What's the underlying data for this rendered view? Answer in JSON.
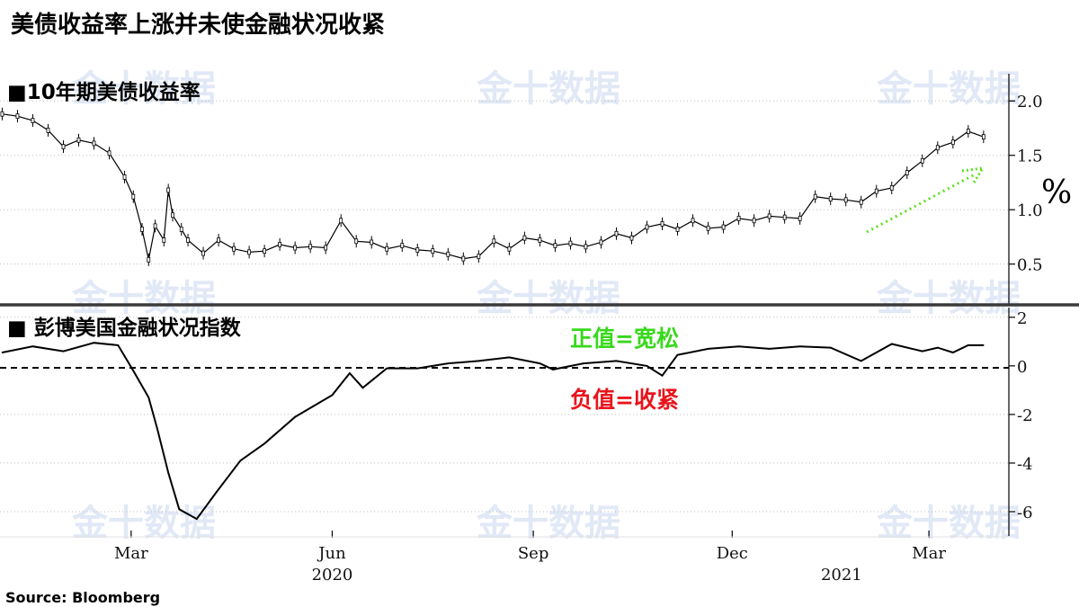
{
  "title": "美债收益率上涨并未使金融状况收紧",
  "source": "Source:  Bloomberg",
  "watermark": "金十数据",
  "chart_data": [
    {
      "type": "line",
      "title": "■10年期美债收益率",
      "ylabel": "%",
      "ylim": [
        0.15,
        2.25
      ],
      "yticks": [
        0.5,
        1.0,
        1.5,
        2.0
      ],
      "ytick_labels": [
        "0.5",
        "1.0",
        "1.5",
        "2.0"
      ],
      "grid": true,
      "annotation": "green dotted arrow indicating rising yields",
      "series": [
        {
          "x": [
            "2020-01-02",
            "2020-01-09",
            "2020-01-16",
            "2020-01-23",
            "2020-01-30",
            "2020-02-06",
            "2020-02-13",
            "2020-02-20",
            "2020-02-27",
            "2020-03-02",
            "2020-03-06",
            "2020-03-09",
            "2020-03-12",
            "2020-03-16",
            "2020-03-18",
            "2020-03-20",
            "2020-03-24",
            "2020-03-27",
            "2020-04-03",
            "2020-04-10",
            "2020-04-17",
            "2020-04-24",
            "2020-05-01",
            "2020-05-08",
            "2020-05-15",
            "2020-05-22",
            "2020-05-29",
            "2020-06-05",
            "2020-06-12",
            "2020-06-19",
            "2020-06-26",
            "2020-07-03",
            "2020-07-10",
            "2020-07-17",
            "2020-07-24",
            "2020-07-31",
            "2020-08-07",
            "2020-08-14",
            "2020-08-21",
            "2020-08-28",
            "2020-09-04",
            "2020-09-11",
            "2020-09-18",
            "2020-09-25",
            "2020-10-02",
            "2020-10-09",
            "2020-10-16",
            "2020-10-23",
            "2020-10-30",
            "2020-11-06",
            "2020-11-13",
            "2020-11-20",
            "2020-11-27",
            "2020-12-04",
            "2020-12-11",
            "2020-12-18",
            "2020-12-25",
            "2021-01-01",
            "2021-01-08",
            "2021-01-15",
            "2021-01-22",
            "2021-01-29",
            "2021-02-05",
            "2021-02-12",
            "2021-02-19",
            "2021-02-26",
            "2021-03-05",
            "2021-03-12",
            "2021-03-19",
            "2021-03-26"
          ],
          "values": [
            1.88,
            1.86,
            1.82,
            1.73,
            1.58,
            1.64,
            1.61,
            1.52,
            1.3,
            1.12,
            0.82,
            0.54,
            0.85,
            0.72,
            1.18,
            0.95,
            0.82,
            0.72,
            0.6,
            0.72,
            0.64,
            0.61,
            0.62,
            0.68,
            0.65,
            0.66,
            0.65,
            0.9,
            0.71,
            0.7,
            0.64,
            0.67,
            0.63,
            0.62,
            0.59,
            0.55,
            0.57,
            0.71,
            0.64,
            0.74,
            0.72,
            0.67,
            0.69,
            0.66,
            0.7,
            0.78,
            0.74,
            0.84,
            0.87,
            0.82,
            0.9,
            0.83,
            0.84,
            0.92,
            0.9,
            0.94,
            0.93,
            0.92,
            1.12,
            1.1,
            1.09,
            1.07,
            1.17,
            1.2,
            1.34,
            1.45,
            1.57,
            1.62,
            1.72,
            1.67
          ]
        }
      ]
    },
    {
      "type": "line",
      "title": "■ 彭博美国金融状况指数",
      "ylim": [
        -7,
        2.4
      ],
      "yticks": [
        2,
        0,
        -2,
        -4,
        -6
      ],
      "ytick_labels": [
        "2",
        "0",
        "-2",
        "-4",
        "-6"
      ],
      "reference_line": 0,
      "grid": true,
      "annotations": [
        "正值=宽松",
        "负值=收紧"
      ],
      "xticks": [
        "2020-03-01",
        "2020-06-01",
        "2020-09-01",
        "2020-12-01",
        "2021-03-01"
      ],
      "xtick_labels": [
        "Mar",
        "Jun",
        "Sep",
        "Dec",
        "Mar"
      ],
      "year_labels": [
        {
          "x": "2020-06-01",
          "label": "2020"
        },
        {
          "x": "2021-01-20",
          "label": "2021"
        }
      ],
      "series": [
        {
          "x": [
            "2020-01-02",
            "2020-01-16",
            "2020-01-30",
            "2020-02-13",
            "2020-02-24",
            "2020-03-02",
            "2020-03-09",
            "2020-03-13",
            "2020-03-18",
            "2020-03-23",
            "2020-03-31",
            "2020-04-09",
            "2020-04-20",
            "2020-05-01",
            "2020-05-15",
            "2020-06-01",
            "2020-06-09",
            "2020-06-15",
            "2020-06-26",
            "2020-07-10",
            "2020-07-24",
            "2020-08-07",
            "2020-08-21",
            "2020-09-04",
            "2020-09-10",
            "2020-09-24",
            "2020-10-09",
            "2020-10-23",
            "2020-10-30",
            "2020-11-06",
            "2020-11-20",
            "2020-12-04",
            "2020-12-18",
            "2021-01-01",
            "2021-01-15",
            "2021-01-29",
            "2021-02-12",
            "2021-02-26",
            "2021-03-05",
            "2021-03-12",
            "2021-03-19",
            "2021-03-26"
          ],
          "values": [
            0.55,
            0.8,
            0.6,
            0.95,
            0.85,
            -0.2,
            -1.3,
            -2.6,
            -4.4,
            -5.9,
            -6.3,
            -5.2,
            -3.9,
            -3.2,
            -2.1,
            -1.2,
            -0.3,
            -0.9,
            -0.1,
            -0.1,
            0.1,
            0.2,
            0.35,
            0.1,
            -0.15,
            0.1,
            0.2,
            0.0,
            -0.4,
            0.45,
            0.7,
            0.8,
            0.7,
            0.8,
            0.75,
            0.2,
            0.9,
            0.6,
            0.75,
            0.55,
            0.85,
            0.85
          ]
        }
      ]
    }
  ]
}
